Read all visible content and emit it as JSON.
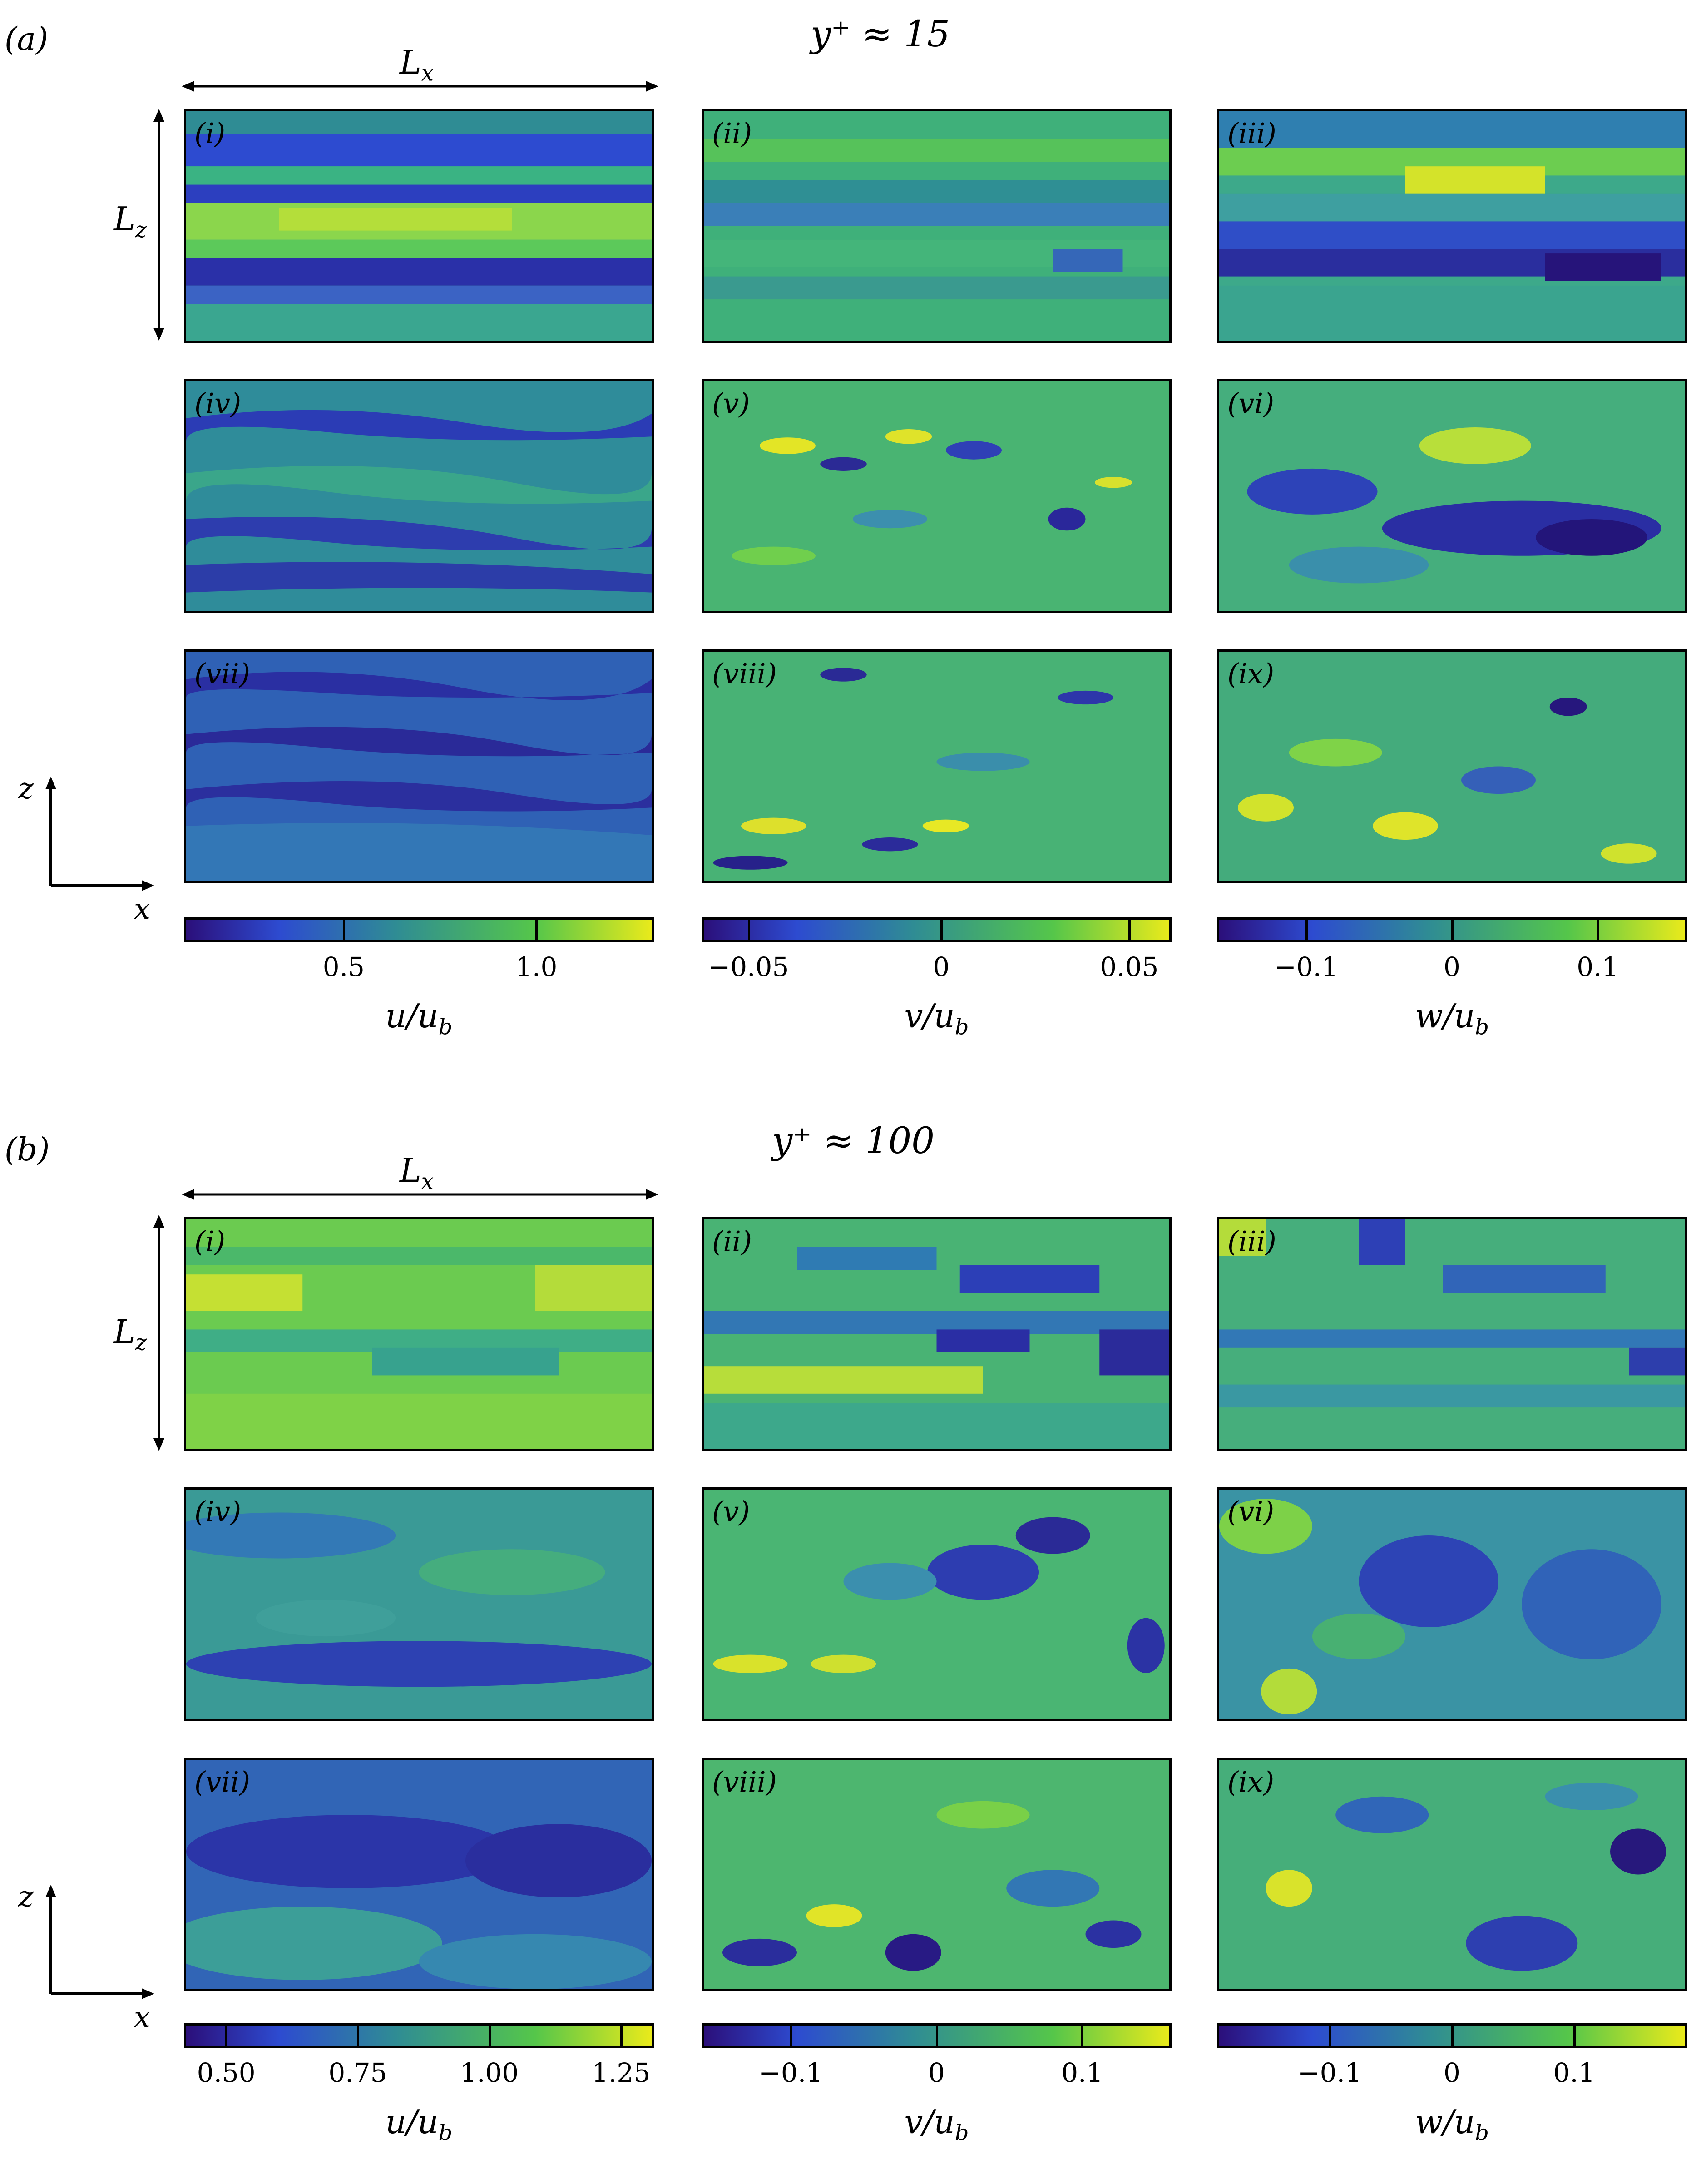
{
  "sections": [
    {
      "label": "(a)",
      "title": "y⁺ ≈ 15",
      "lx": "L",
      "lx_sub": "x",
      "lz": "L",
      "lz_sub": "z",
      "axis_z": "z",
      "axis_x": "x",
      "tiles": [
        "(i)",
        "(ii)",
        "(iii)",
        "(iv)",
        "(v)",
        "(vi)",
        "(vii)",
        "(viii)",
        "(ix)"
      ],
      "colorbars": [
        {
          "title": "u/u",
          "sub": "b",
          "ticks": [
            "0.5",
            "1.0"
          ],
          "tick_pos": [
            0.34,
            0.75
          ]
        },
        {
          "title": "v/u",
          "sub": "b",
          "ticks": [
            "−0.05",
            "0",
            "0.05"
          ],
          "tick_pos": [
            0.1,
            0.51,
            0.91
          ]
        },
        {
          "title": "w/u",
          "sub": "b",
          "ticks": [
            "−0.1",
            "0",
            "0.1"
          ],
          "tick_pos": [
            0.19,
            0.5,
            0.81
          ]
        }
      ]
    },
    {
      "label": "(b)",
      "title": "y⁺ ≈ 100",
      "lx": "L",
      "lx_sub": "x",
      "lz": "L",
      "lz_sub": "z",
      "axis_z": "z",
      "axis_x": "x",
      "tiles": [
        "(i)",
        "(ii)",
        "(iii)",
        "(iv)",
        "(v)",
        "(vi)",
        "(vii)",
        "(viii)",
        "(ix)"
      ],
      "colorbars": [
        {
          "title": "u/u",
          "sub": "b",
          "ticks": [
            "0.50",
            "0.75",
            "1.00",
            "1.25"
          ],
          "tick_pos": [
            0.09,
            0.37,
            0.65,
            0.93
          ]
        },
        {
          "title": "v/u",
          "sub": "b",
          "ticks": [
            "−0.1",
            "0",
            "0.1"
          ],
          "tick_pos": [
            0.19,
            0.5,
            0.81
          ]
        },
        {
          "title": "w/u",
          "sub": "b",
          "ticks": [
            "−0.1",
            "0",
            "0.1"
          ],
          "tick_pos": [
            0.24,
            0.5,
            0.76
          ]
        }
      ]
    }
  ],
  "colors": {
    "viridis_dark": "#2b0f7a",
    "viridis_blue": "#2d4bd0",
    "viridis_mid": "#35a296",
    "viridis_green": "#55c64a",
    "viridis_yellow": "#e9ea1b"
  }
}
